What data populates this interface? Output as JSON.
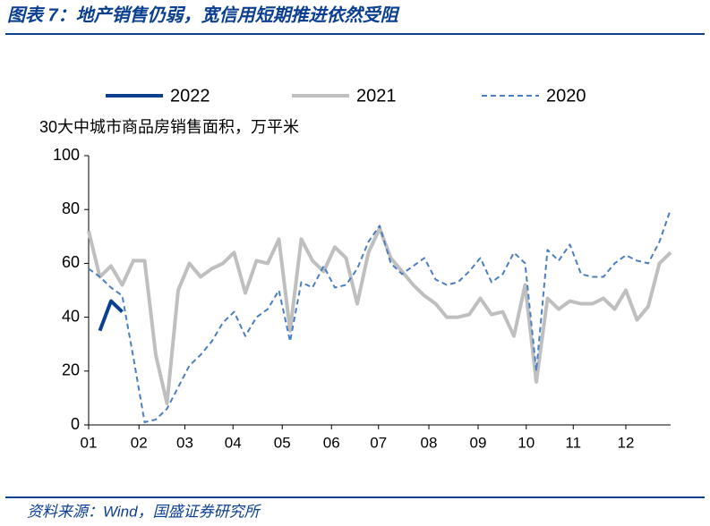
{
  "chart_data": {
    "type": "line",
    "title": "图表 7：地产销售仍弱，宽信用短期推进依然受阻",
    "ylabel": "30大中城市商品房销售面积，万平米",
    "source": "资料来源：Wind，国盛证券研究所",
    "x": [
      0,
      1,
      2,
      3,
      4,
      5,
      6,
      7,
      8,
      9,
      10,
      11,
      12,
      13,
      14,
      15,
      16,
      17,
      18,
      19,
      20,
      21,
      22,
      23,
      24,
      25,
      26,
      27,
      28,
      29,
      30,
      31,
      32,
      33,
      34,
      35,
      36,
      37,
      38,
      39,
      40,
      41,
      42,
      43,
      44,
      45,
      46,
      47,
      48,
      49,
      50,
      51,
      52
    ],
    "series": [
      {
        "name": "2022",
        "color": "#0b3f8f",
        "style": "solid-thick",
        "values": [
          null,
          35,
          46,
          42,
          null,
          null,
          null,
          null,
          null,
          null,
          null,
          null,
          null,
          null,
          null,
          null,
          null,
          null,
          null,
          null,
          null,
          null,
          null,
          null,
          null,
          null,
          null,
          null,
          null,
          null,
          null,
          null,
          null,
          null,
          null,
          null,
          null,
          null,
          null,
          null,
          null,
          null,
          null,
          null,
          null,
          null,
          null,
          null,
          null,
          null,
          null,
          null,
          null
        ]
      },
      {
        "name": "2021",
        "color": "#bfbfbf",
        "style": "solid",
        "values": [
          72,
          55,
          59,
          52,
          61,
          61,
          26,
          8,
          50,
          60,
          55,
          58,
          60,
          64,
          49,
          61,
          60,
          69,
          35,
          69,
          61,
          57,
          66,
          62,
          45,
          64,
          73,
          62,
          57,
          52,
          48,
          45,
          40,
          40,
          41,
          47,
          41,
          42,
          33,
          52,
          16,
          47,
          43,
          46,
          45,
          45,
          47,
          43,
          50,
          39,
          44,
          60,
          64
        ]
      },
      {
        "name": "2020",
        "color": "#4a7fc1",
        "style": "dashed",
        "values": [
          58,
          55,
          51,
          48,
          25,
          1,
          2,
          6,
          14,
          22,
          26,
          31,
          38,
          42,
          33,
          40,
          43,
          50,
          31,
          53,
          51,
          59,
          51,
          52,
          58,
          68,
          74,
          60,
          56,
          59,
          62,
          54,
          52,
          53,
          57,
          62,
          53,
          56,
          64,
          60,
          20,
          65,
          61,
          67,
          56,
          55,
          55,
          60,
          63,
          61,
          60,
          68,
          80
        ]
      }
    ],
    "xlim": [
      0,
      52
    ],
    "xticks": [
      {
        "value": 0,
        "label": "01"
      },
      {
        "value": 4.5,
        "label": "02"
      },
      {
        "value": 8.6,
        "label": "03"
      },
      {
        "value": 12.9,
        "label": "04"
      },
      {
        "value": 17.3,
        "label": "05"
      },
      {
        "value": 21.7,
        "label": "06"
      },
      {
        "value": 25.9,
        "label": "07"
      },
      {
        "value": 30.4,
        "label": "08"
      },
      {
        "value": 34.8,
        "label": "09"
      },
      {
        "value": 39.1,
        "label": "10"
      },
      {
        "value": 43.3,
        "label": "11"
      },
      {
        "value": 48,
        "label": "12"
      }
    ],
    "ylim": [
      0,
      100
    ],
    "yticks": [
      0,
      20,
      40,
      60,
      80,
      100
    ]
  }
}
